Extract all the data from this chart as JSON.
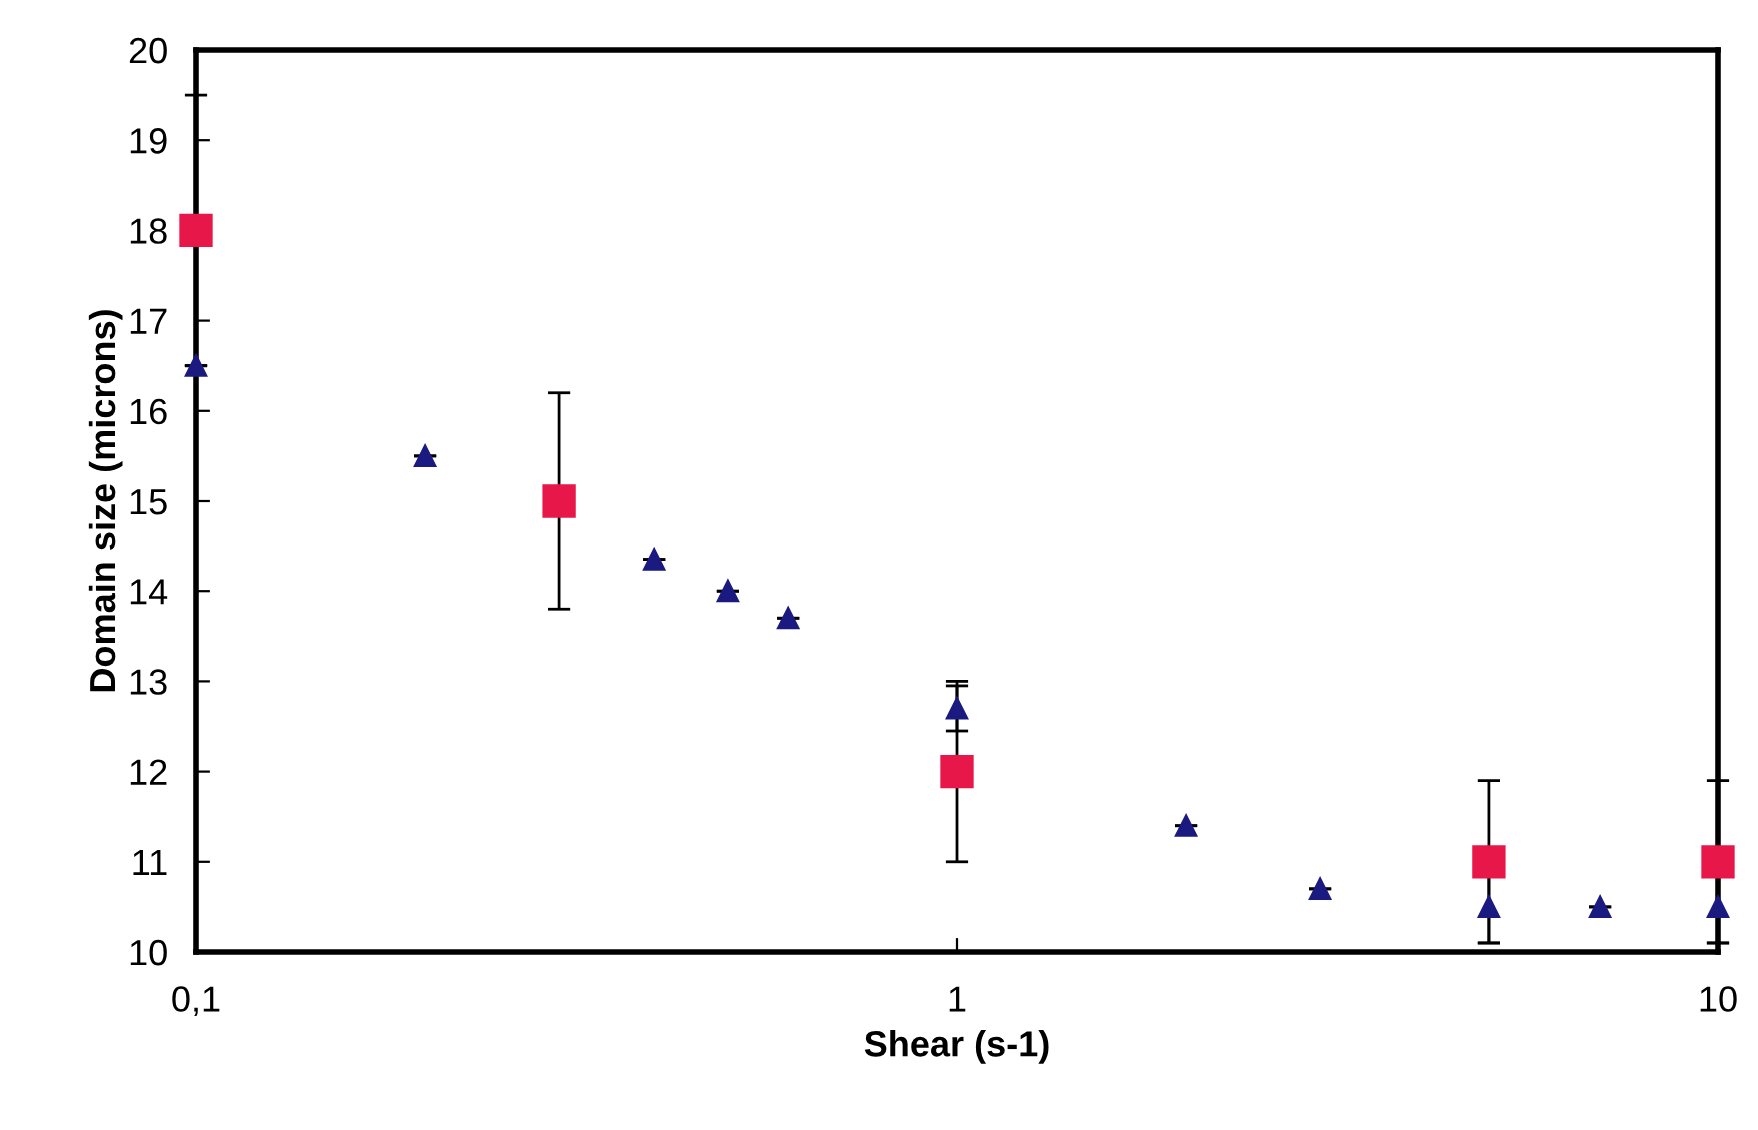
{
  "chart_data": {
    "type": "scatter",
    "xlabel": "Shear (s-1)",
    "ylabel": "Domain size (microns)",
    "log": "x",
    "xlim": [
      0.1,
      10
    ],
    "xticks": [
      {
        "value": 0.1,
        "label": "0,1"
      },
      1,
      10
    ],
    "ylim": [
      10,
      20
    ],
    "yticks": [
      10,
      11,
      12,
      13,
      14,
      15,
      16,
      17,
      18,
      19,
      20
    ],
    "series": [
      {
        "color": "#1a1a80",
        "marker": "triangle",
        "x": [
          0.1,
          0.2,
          0.4,
          0.5,
          0.6,
          1,
          2,
          3,
          5,
          7,
          10
        ],
        "values": [
          16.5,
          15.5,
          14.35,
          14.0,
          13.7,
          12.7,
          11.4,
          10.7,
          10.5,
          10.5,
          10.5
        ],
        "errors": [
          null,
          null,
          null,
          null,
          null,
          0.25,
          null,
          null,
          0.4,
          null,
          0.4
        ]
      },
      {
        "color": "#e8174a",
        "marker": "square",
        "x": [
          0.1,
          0.3,
          1,
          5,
          10
        ],
        "values": [
          18,
          15,
          12,
          11,
          11
        ],
        "errors": [
          1.5,
          1.2,
          1,
          0.9,
          0.9
        ]
      }
    ]
  }
}
